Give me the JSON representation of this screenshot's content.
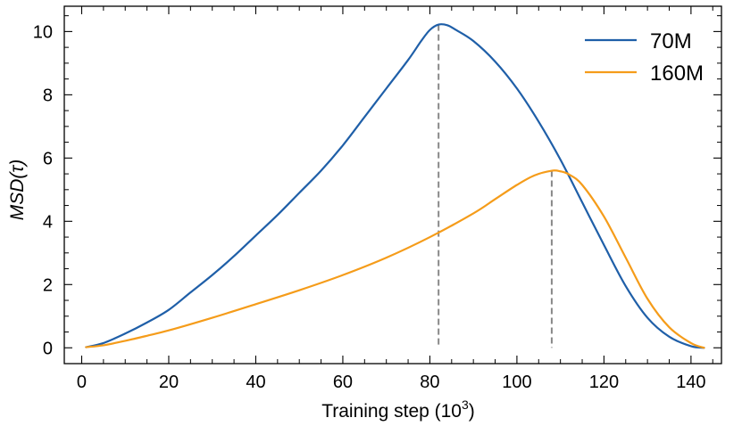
{
  "chart_data": {
    "type": "line",
    "xlabel": "Training step (10",
    "xlabel_sup": "3",
    "xlabel_suffix": ")",
    "ylabel": "MSD(τ)",
    "xlim": [
      -4,
      147
    ],
    "ylim": [
      -0.5,
      10.8
    ],
    "xticks": [
      0,
      20,
      40,
      60,
      80,
      100,
      120,
      140
    ],
    "yticks": [
      0,
      2,
      4,
      6,
      8,
      10
    ],
    "grid": false,
    "legend_position": "top-right",
    "series": [
      {
        "name": "70M",
        "color": "#1f5fa8",
        "x": [
          1,
          5,
          10,
          15,
          20,
          25,
          30,
          35,
          40,
          45,
          50,
          55,
          60,
          65,
          70,
          75,
          78,
          80,
          82,
          84,
          86,
          90,
          95,
          100,
          105,
          110,
          115,
          120,
          125,
          130,
          135,
          140,
          143
        ],
        "y": [
          0.02,
          0.15,
          0.45,
          0.8,
          1.2,
          1.75,
          2.3,
          2.9,
          3.55,
          4.2,
          4.9,
          5.6,
          6.4,
          7.3,
          8.2,
          9.1,
          9.7,
          10.05,
          10.22,
          10.2,
          10.05,
          9.7,
          9.05,
          8.2,
          7.15,
          5.95,
          4.6,
          3.25,
          1.95,
          0.95,
          0.35,
          0.05,
          0.0
        ]
      },
      {
        "name": "160M",
        "color": "#f59c1a",
        "x": [
          1,
          5,
          10,
          15,
          20,
          30,
          40,
          50,
          60,
          70,
          80,
          90,
          95,
          100,
          104,
          108,
          110,
          112,
          115,
          120,
          125,
          130,
          135,
          140,
          143
        ],
        "y": [
          0.02,
          0.08,
          0.22,
          0.38,
          0.55,
          0.95,
          1.38,
          1.82,
          2.3,
          2.85,
          3.5,
          4.25,
          4.7,
          5.15,
          5.45,
          5.6,
          5.58,
          5.48,
          5.15,
          4.15,
          2.85,
          1.55,
          0.65,
          0.15,
          0.0
        ]
      }
    ],
    "vlines": [
      {
        "x": 82,
        "y_top": 10.22,
        "color": "#888888"
      },
      {
        "x": 108,
        "y_top": 5.6,
        "color": "#888888"
      }
    ]
  }
}
